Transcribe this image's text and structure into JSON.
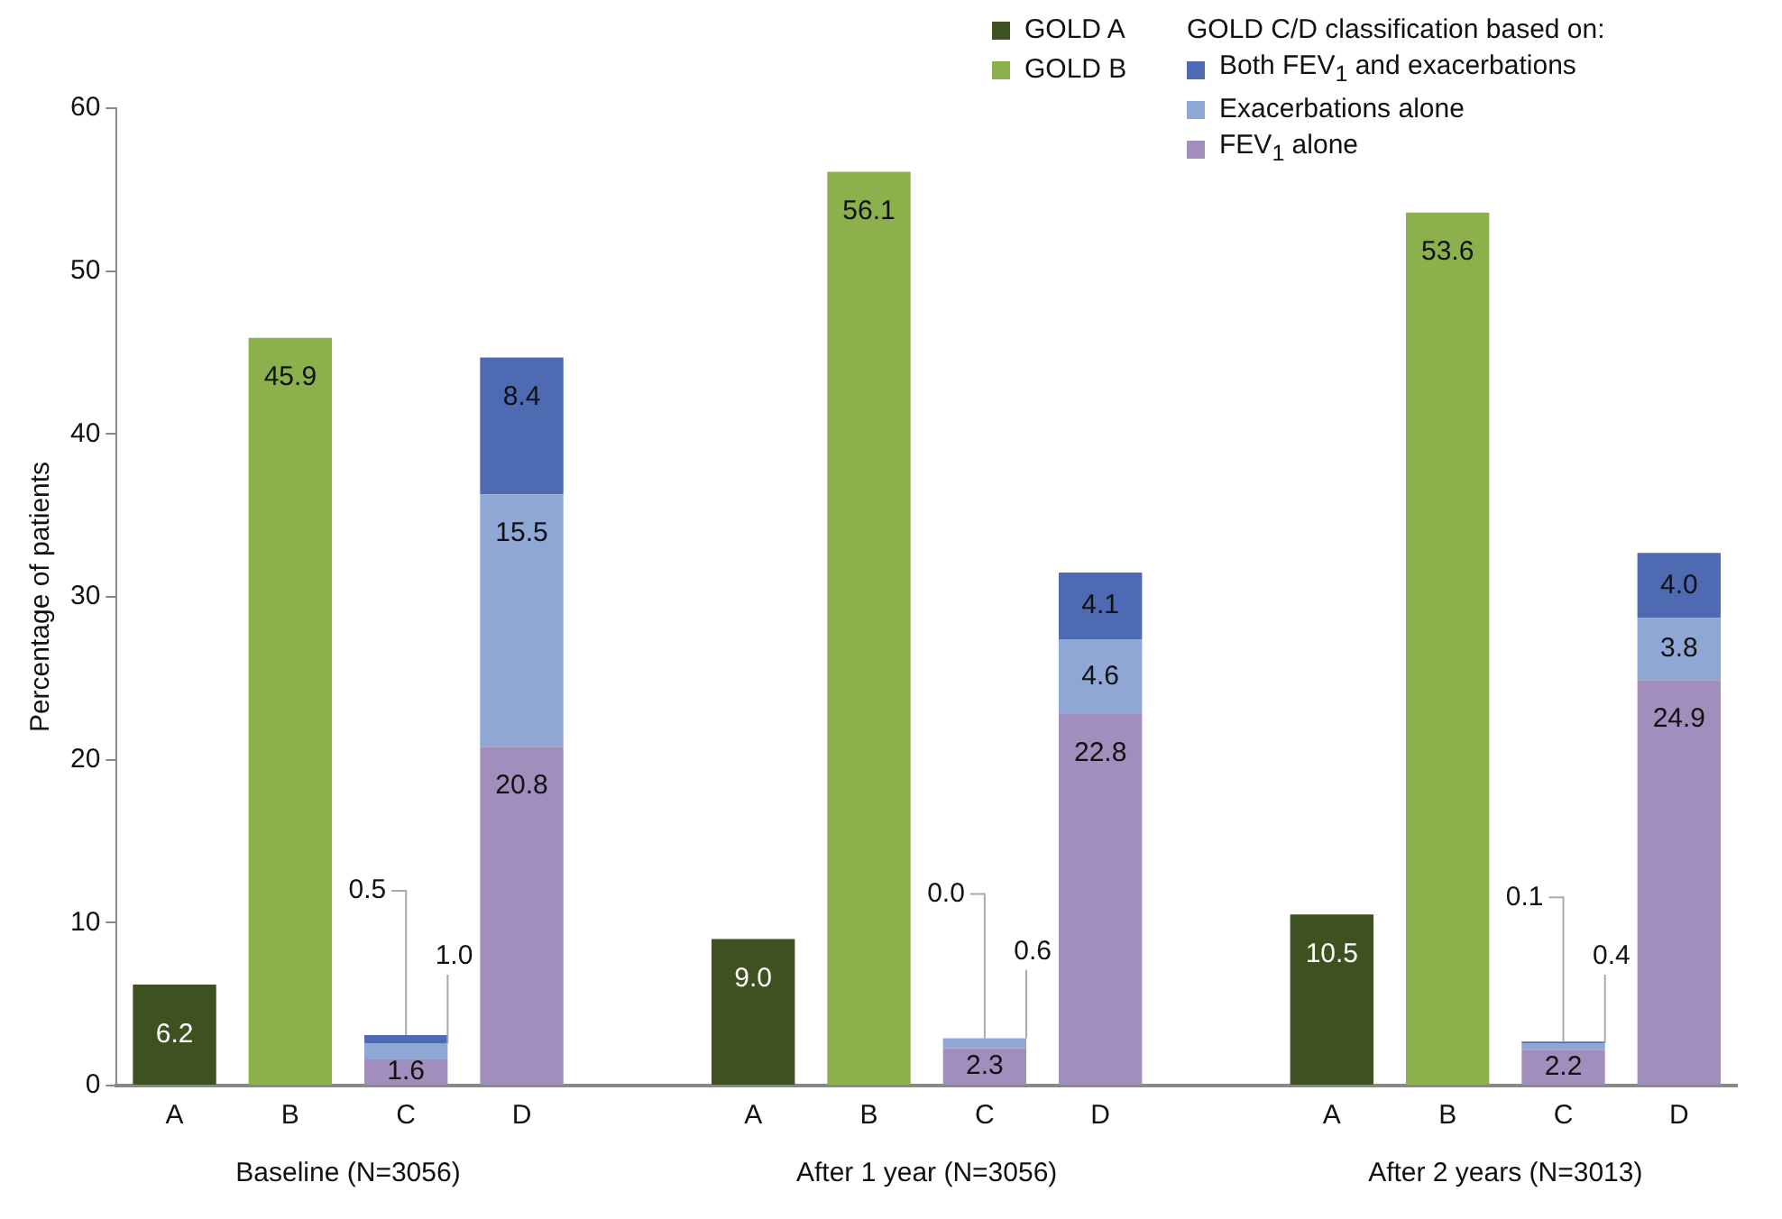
{
  "chart_data": {
    "type": "bar",
    "stacked": true,
    "ylabel": "Percentage of patients",
    "legend_title": "GOLD C/D classification based on:",
    "legend": "top right",
    "grid": false,
    "categories": [
      "A",
      "B",
      "C",
      "D",
      null,
      "A",
      "B",
      "C",
      "D",
      null,
      "A",
      "B",
      "C",
      "D"
    ],
    "ylim": [
      0,
      60
    ],
    "yticks": [
      0,
      10,
      20,
      30,
      40,
      50,
      60
    ],
    "series": [
      {
        "name": "GOLD A",
        "color": "#3e5221",
        "values": [
          6.2,
          null,
          null,
          null,
          null,
          9.0,
          null,
          null,
          null,
          null,
          10.5,
          null,
          null,
          null
        ],
        "value_labels": [
          "6.2",
          null,
          null,
          null,
          null,
          "9.0",
          null,
          null,
          null,
          null,
          "10.5",
          null,
          null,
          null
        ]
      },
      {
        "name": "GOLD B",
        "color": "#8cb04b",
        "values": [
          null,
          45.9,
          null,
          null,
          null,
          null,
          56.1,
          null,
          null,
          null,
          null,
          53.6,
          null,
          null
        ],
        "value_labels": [
          null,
          "45.9",
          null,
          null,
          null,
          null,
          "56.1",
          null,
          null,
          null,
          null,
          "53.6",
          null,
          null
        ]
      },
      {
        "name": "FEV$_{1}$ alone",
        "color": "#a28ebd",
        "values": [
          null,
          null,
          1.6,
          20.8,
          null,
          null,
          null,
          2.3,
          22.8,
          null,
          null,
          null,
          2.2,
          24.9
        ],
        "value_labels": [
          null,
          null,
          "1.6",
          "20.8",
          null,
          null,
          null,
          "2.3",
          "22.8",
          null,
          null,
          null,
          "2.2",
          "24.9"
        ]
      },
      {
        "name": "Exacerbations alone",
        "color": "#8fa7d4",
        "values": [
          null,
          null,
          1.0,
          15.5,
          null,
          null,
          null,
          0.6,
          4.6,
          null,
          null,
          null,
          0.4,
          3.8
        ],
        "value_labels": [
          null,
          null,
          "1.0",
          "15.5",
          null,
          null,
          null,
          "0.6",
          "4.6",
          null,
          null,
          null,
          "0.4",
          "3.8"
        ]
      },
      {
        "name": "Both FEV$_{1}$ and exacerbations",
        "color": "#4d6ab3",
        "values": [
          null,
          null,
          0.5,
          8.4,
          null,
          null,
          null,
          0.0,
          4.1,
          null,
          null,
          null,
          0.1,
          4.0
        ],
        "value_labels": [
          null,
          null,
          "0.5",
          "8.4",
          null,
          null,
          null,
          "0.0",
          "4.1",
          null,
          null,
          null,
          "0.1",
          "4.0"
        ]
      }
    ],
    "annotations": [
      "Baseline (N=3056)",
      "After 1 year (N=3056)",
      "After 2 years (N=3013)"
    ]
  }
}
